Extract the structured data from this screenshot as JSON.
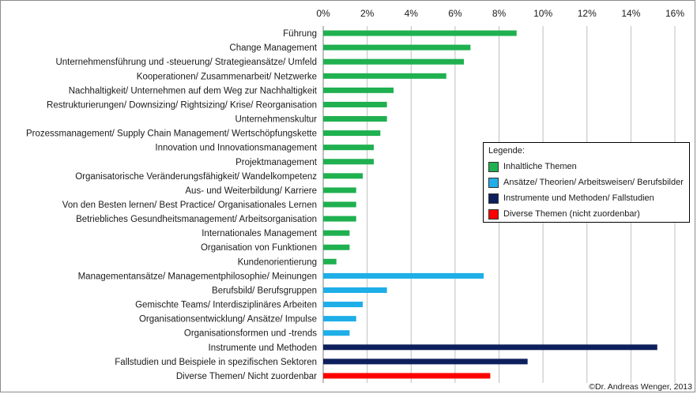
{
  "chart_data": {
    "type": "bar",
    "orientation": "horizontal",
    "x_ticks": [
      "0%",
      "2%",
      "4%",
      "6%",
      "8%",
      "10%",
      "12%",
      "14%",
      "16%"
    ],
    "xlim": [
      0,
      16
    ],
    "grid": true,
    "legend_position": "right-middle",
    "categories": [
      "Führung",
      "Change Management",
      "Unternehmensführung und -steuerung/ Strategieansätze/ Umfeld",
      "Kooperationen/ Zusammenarbeit/ Netzwerke",
      "Nachhaltigkeit/ Unternehmen auf dem Weg zur Nachhaltigkeit",
      "Restrukturierungen/ Downsizing/ Rightsizing/ Krise/ Reorganisation",
      "Unternehmenskultur",
      "Prozessmanagement/ Supply Chain Management/ Wertschöpfungskette",
      "Innovation und Innovationsmanagement",
      "Projektmanagement",
      "Organisatorische Veränderungsfähigkeit/ Wandelkompetenz",
      "Aus- und Weiterbildung/ Karriere",
      "Von den Besten lernen/ Best Practice/ Organisationales Lernen",
      "Betriebliches Gesundheitsmanagement/ Arbeitsorganisation",
      "Internationales Management",
      "Organisation von Funktionen",
      "Kundenorientierung",
      "Managementansätze/ Managementphilosophie/ Meinungen",
      "Berufsbild/ Berufsgruppen",
      "Gemischte Teams/ Interdisziplinäres Arbeiten",
      "Organisationsentwicklung/ Ansätze/ Impulse",
      "Organisationsformen und -trends",
      "Instrumente und Methoden",
      "Fallstudien und Beispiele in spezifischen Sektoren",
      "Diverse Themen/ Nicht zuordenbar"
    ],
    "values": [
      8.8,
      6.7,
      6.4,
      5.6,
      3.2,
      2.9,
      2.9,
      2.6,
      2.3,
      2.3,
      1.8,
      1.5,
      1.5,
      1.5,
      1.2,
      1.2,
      0.6,
      7.3,
      2.9,
      1.8,
      1.5,
      1.2,
      15.2,
      9.3,
      7.6
    ],
    "groups": [
      0,
      0,
      0,
      0,
      0,
      0,
      0,
      0,
      0,
      0,
      0,
      0,
      0,
      0,
      0,
      0,
      0,
      1,
      1,
      1,
      1,
      1,
      2,
      3,
      4
    ],
    "series": [
      {
        "name": "Inhaltliche Themen",
        "color": "#1fb050"
      },
      {
        "name": "Ansätze/ Theorien/ Arbeitsweisen/ Berufsbilder",
        "color": "#1eaee8"
      },
      {
        "name": "Instrumente und Methoden/ Fallstudien",
        "color": "#0d1f5c"
      },
      {
        "name": "Diverse Themen (nicht zuordenbar)",
        "color": "#ff0000"
      }
    ],
    "group_series": [
      0,
      1,
      2,
      2,
      3
    ]
  },
  "legend": {
    "title": "Legende:"
  },
  "credit": "©Dr. Andreas Wenger, 2013"
}
